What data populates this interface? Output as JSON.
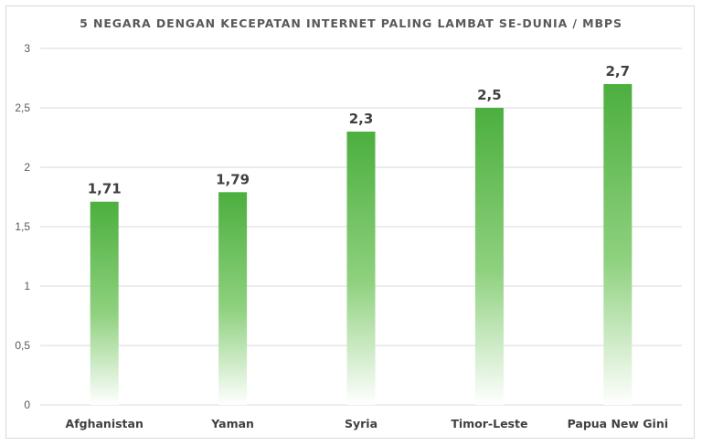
{
  "chart_data": {
    "type": "bar",
    "title": "5 NEGARA DENGAN KECEPATAN INTERNET PALING LAMBAT SE-DUNIA / MBPS",
    "categories": [
      "Afghanistan",
      "Yaman",
      "Syria",
      "Timor-Leste",
      "Papua New Gini"
    ],
    "values": [
      1.71,
      1.79,
      2.3,
      2.5,
      2.7
    ],
    "data_labels": [
      "1,71",
      "1,79",
      "2,3",
      "2,5",
      "2,7"
    ],
    "ylim": [
      0,
      3
    ],
    "yticks": [
      0,
      0.5,
      1,
      1.5,
      2,
      2.5,
      3
    ],
    "ytick_labels": [
      "0",
      "0,5",
      "1",
      "1,5",
      "2",
      "2,5",
      "3"
    ],
    "grid": true,
    "legend": "none",
    "colors": {
      "bar_top": "#4caf3e",
      "bar_bottom": "#ffffff",
      "grid": "#d9d9d9",
      "text": "#404040"
    }
  }
}
